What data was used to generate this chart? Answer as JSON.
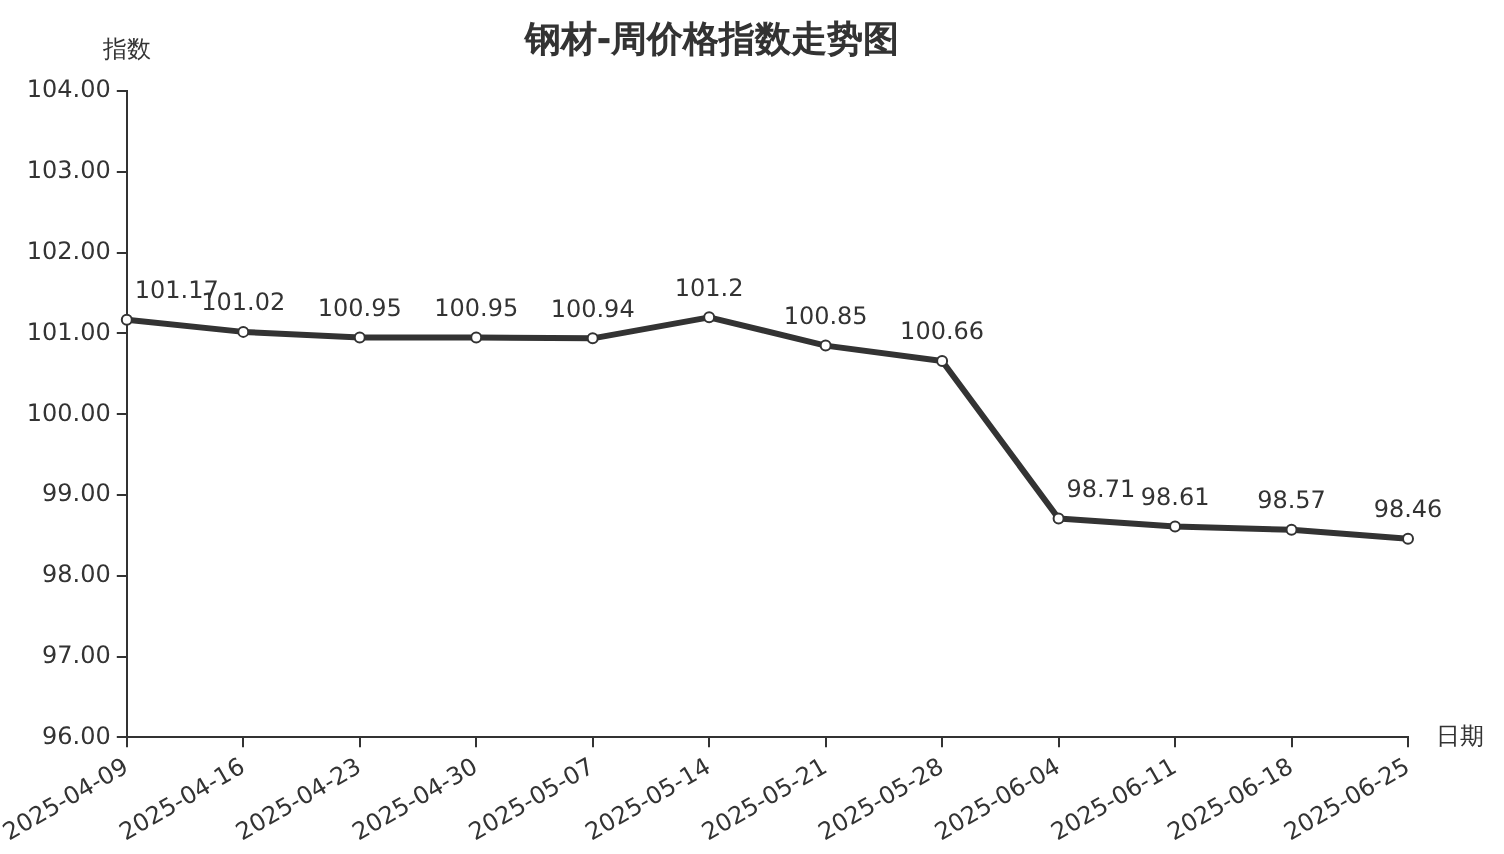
{
  "chart_data": {
    "type": "line",
    "title": "钢材-周价格指数走势图",
    "xlabel": "日期",
    "ylabel": "指数",
    "categories": [
      "2025-04-09",
      "2025-04-16",
      "2025-04-23",
      "2025-04-30",
      "2025-05-07",
      "2025-05-14",
      "2025-05-21",
      "2025-05-28",
      "2025-06-04",
      "2025-06-11",
      "2025-06-18",
      "2025-06-25"
    ],
    "series": [
      {
        "color": "#333333",
        "values": [
          101.17,
          101.02,
          100.95,
          100.95,
          100.94,
          101.2,
          100.85,
          100.66,
          98.71,
          98.61,
          98.57,
          98.46
        ]
      }
    ],
    "ylim": [
      96,
      104
    ],
    "yticks": [
      {
        "value": 96,
        "label": "96.00"
      },
      {
        "value": 97,
        "label": "97.00"
      },
      {
        "value": 98,
        "label": "98.00"
      },
      {
        "value": 99,
        "label": "99.00"
      },
      {
        "value": 100,
        "label": "100.00"
      },
      {
        "value": 101,
        "label": "101.00"
      },
      {
        "value": 102,
        "label": "102.00"
      },
      {
        "value": 103,
        "label": "103.00"
      },
      {
        "value": 104,
        "label": "104.00"
      }
    ],
    "grid": false,
    "marker": "circle",
    "line_style": "solid",
    "data_labels": true
  }
}
